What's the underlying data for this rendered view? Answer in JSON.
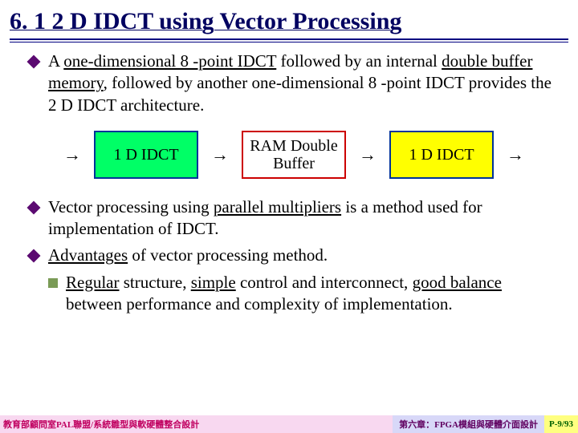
{
  "title": "6. 1 2 D IDCT using Vector Processing",
  "bullets": {
    "b1_parts": [
      "A ",
      "one-dimensional 8 -point IDCT",
      " followed by an internal ",
      "double buffer memory",
      ", followed by another one-dimensional 8 -point IDCT provides the 2 D IDCT architecture."
    ],
    "b2_parts": [
      "Vector processing using ",
      "parallel multipliers",
      " is a method used for implementation of IDCT."
    ],
    "b3_parts": [
      "Advantages",
      " of vector processing method."
    ],
    "b3a_parts": [
      "Regular",
      " structure, ",
      "simple",
      " control and interconnect, ",
      "good balance",
      " between performance and complexity of implementation."
    ]
  },
  "diagram": {
    "boxes": [
      {
        "label": "1 D IDCT",
        "bg": "#00ff66",
        "border": "#003399"
      },
      {
        "label": "RAM Double Buffer",
        "bg": "#ffffff",
        "border": "#cc0000"
      },
      {
        "label": "1 D IDCT",
        "bg": "#ffff00",
        "border": "#003399"
      }
    ],
    "arrow": "→"
  },
  "footer": {
    "left": "教育部顧問室PAL聯盟/系統雛型與軟硬體整合設計",
    "mid": "第六章：FPGA模組與硬體介面設計",
    "right": "P-9/93"
  },
  "colors": {
    "title": "#000060",
    "diamond": "#5b0a71",
    "square": "#7a9b56"
  }
}
